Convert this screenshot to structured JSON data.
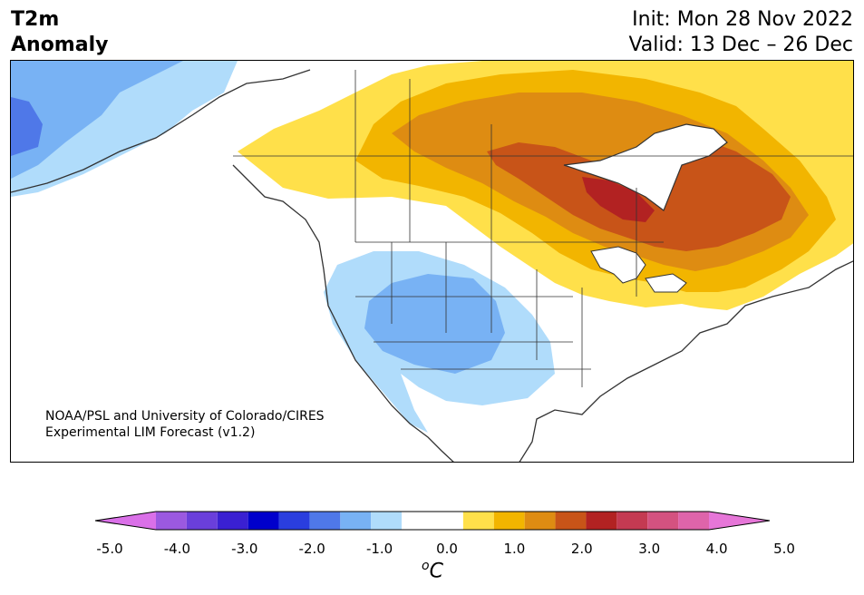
{
  "header": {
    "title_line1": "T2m",
    "title_line2": "Anomaly",
    "init": "Init: Mon 28 Nov 2022",
    "valid": "Valid: 13 Dec – 26 Dec"
  },
  "credit": {
    "line1": "NOAA/PSL and University of Colorado/CIRES",
    "line2": "Experimental LIM Forecast (v1.2)"
  },
  "colorbar": {
    "unit_sup": "o",
    "unit": "C",
    "min_color": "#da70e8",
    "max_color": "#e676d8",
    "bins": [
      {
        "lo": -4.5,
        "hi": -4.0,
        "color": "#9b59e0"
      },
      {
        "lo": -4.0,
        "hi": -3.5,
        "color": "#6a3fdb"
      },
      {
        "lo": -3.5,
        "hi": -3.0,
        "color": "#3a20d2"
      },
      {
        "lo": -3.0,
        "hi": -2.5,
        "color": "#0000cc"
      },
      {
        "lo": -2.5,
        "hi": -2.0,
        "color": "#2a3ede"
      },
      {
        "lo": -2.0,
        "hi": -1.5,
        "color": "#4f78e8"
      },
      {
        "lo": -1.5,
        "hi": -1.0,
        "color": "#78b2f4"
      },
      {
        "lo": -1.0,
        "hi": -0.5,
        "color": "#b0dcfb"
      },
      {
        "lo": -0.5,
        "hi": 0.5,
        "color": "#ffffff"
      },
      {
        "lo": 0.5,
        "hi": 1.0,
        "color": "#ffe04a"
      },
      {
        "lo": 1.0,
        "hi": 1.5,
        "color": "#f2b500"
      },
      {
        "lo": 1.5,
        "hi": 2.0,
        "color": "#de8c12"
      },
      {
        "lo": 2.0,
        "hi": 2.5,
        "color": "#c85418"
      },
      {
        "lo": 2.5,
        "hi": 3.0,
        "color": "#b22222"
      },
      {
        "lo": 3.0,
        "hi": 3.5,
        "color": "#c43a52"
      },
      {
        "lo": 3.5,
        "hi": 4.0,
        "color": "#d45280"
      },
      {
        "lo": 4.0,
        "hi": 4.5,
        "color": "#de64aa"
      }
    ],
    "ticks": [
      "-5.0",
      "-4.0",
      "-3.0",
      "-2.0",
      "-1.0",
      "0.0",
      "1.0",
      "2.0",
      "3.0",
      "4.0",
      "5.0"
    ],
    "range": [
      -5.0,
      5.0
    ]
  },
  "map": {
    "colors": {
      "cold1": "#b0dcfb",
      "cold2": "#78b2f4",
      "cold3": "#4f78e8",
      "warm1": "#ffe04a",
      "warm2": "#f2b500",
      "warm3": "#de8c12",
      "warm4": "#c85418",
      "warm5": "#b22222",
      "border": "#333333"
    }
  }
}
